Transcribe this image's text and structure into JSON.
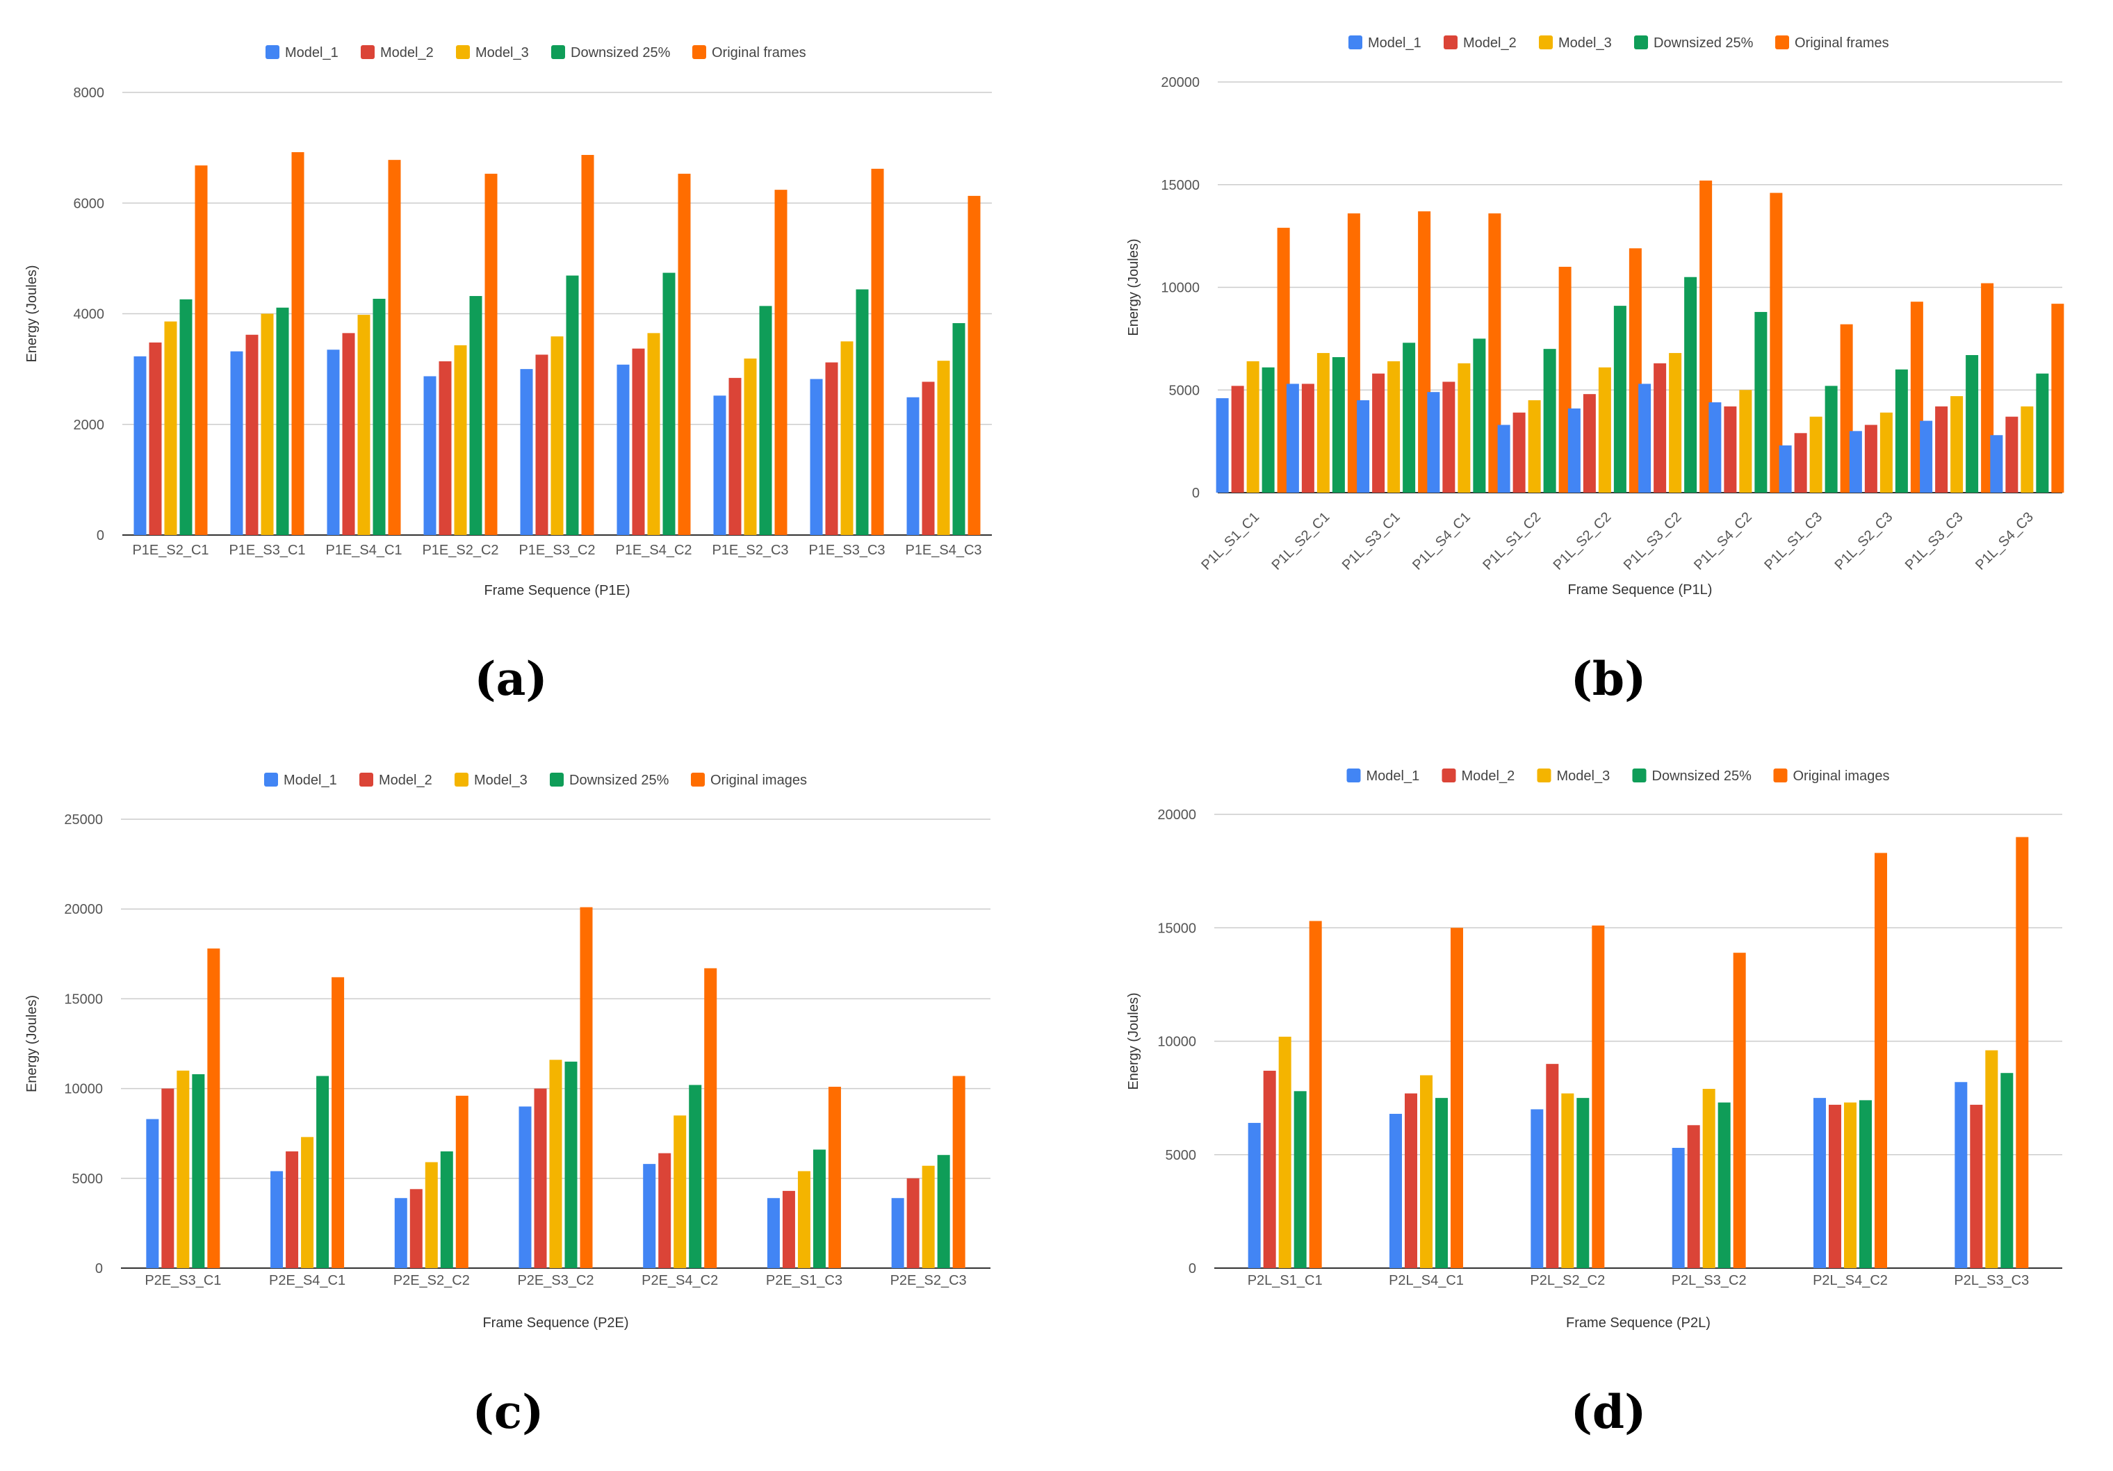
{
  "chart_data": [
    {
      "type": "bar",
      "caption": "(a)",
      "title": "",
      "xlabel": "Frame Sequence (P1E)",
      "ylabel": "Energy (Joules)",
      "ylim": [
        0,
        8000
      ],
      "yticks": [
        0,
        2000,
        4000,
        6000,
        8000
      ],
      "grid": true,
      "legend_position": "top",
      "x_label_rotation": 0,
      "categories": [
        "P1E_S2_C1",
        "P1E_S3_C1",
        "P1E_S4_C1",
        "P1E_S2_C2",
        "P1E_S3_C2",
        "P1E_S4_C2",
        "P1E_S2_C3",
        "P1E_S3_C3",
        "P1E_S4_C3"
      ],
      "series": [
        {
          "name": "Model_1",
          "color": "#4285f4",
          "values": [
            3230,
            3320,
            3350,
            2870,
            3000,
            3080,
            2520,
            2820,
            2490
          ]
        },
        {
          "name": "Model_2",
          "color": "#db4437",
          "values": [
            3480,
            3620,
            3650,
            3140,
            3260,
            3370,
            2840,
            3120,
            2770
          ]
        },
        {
          "name": "Model_3",
          "color": "#f4b400",
          "values": [
            3860,
            4000,
            3980,
            3430,
            3590,
            3650,
            3190,
            3500,
            3150
          ]
        },
        {
          "name": "Downsized 25%",
          "color": "#0f9d58",
          "values": [
            4260,
            4110,
            4270,
            4320,
            4690,
            4740,
            4140,
            4440,
            3830
          ]
        },
        {
          "name": "Original frames",
          "color": "#ff6d00",
          "values": [
            6680,
            6920,
            6780,
            6530,
            6870,
            6530,
            6240,
            6620,
            6130
          ]
        }
      ]
    },
    {
      "type": "bar",
      "caption": "(b)",
      "title": "",
      "xlabel": "Frame Sequence (P1L)",
      "ylabel": "Energy (Joules)",
      "ylim": [
        0,
        20000
      ],
      "yticks": [
        0,
        5000,
        10000,
        15000,
        20000
      ],
      "grid": true,
      "legend_position": "top",
      "x_label_rotation": -45,
      "categories": [
        "P1L_S1_C1",
        "P1L_S2_C1",
        "P1L_S3_C1",
        "P1L_S4_C1",
        "P1L_S1_C2",
        "P1L_S2_C2",
        "P1L_S3_C2",
        "P1L_S4_C2",
        "P1L_S1_C3",
        "P1L_S2_C3",
        "P1L_S3_C3",
        "P1L_S4_C3"
      ],
      "series": [
        {
          "name": "Model_1",
          "color": "#4285f4",
          "values": [
            4600,
            5300,
            4500,
            4900,
            3300,
            4100,
            5300,
            4400,
            2300,
            3000,
            3500,
            2800
          ]
        },
        {
          "name": "Model_2",
          "color": "#db4437",
          "values": [
            5200,
            5300,
            5800,
            5400,
            3900,
            4800,
            6300,
            4200,
            2900,
            3300,
            4200,
            3700
          ]
        },
        {
          "name": "Model_3",
          "color": "#f4b400",
          "values": [
            6400,
            6800,
            6400,
            6300,
            4500,
            6100,
            6800,
            5000,
            3700,
            3900,
            4700,
            4200
          ]
        },
        {
          "name": "Downsized 25%",
          "color": "#0f9d58",
          "values": [
            6100,
            6600,
            7300,
            7500,
            7000,
            9100,
            10500,
            8800,
            5200,
            6000,
            6700,
            5800
          ]
        },
        {
          "name": "Original frames",
          "color": "#ff6d00",
          "values": [
            12900,
            13600,
            13700,
            13600,
            11000,
            11900,
            15200,
            14600,
            8200,
            9300,
            10200,
            9200
          ]
        }
      ]
    },
    {
      "type": "bar",
      "caption": "(c)",
      "title": "",
      "xlabel": "Frame Sequence (P2E)",
      "ylabel": "Energy (Joules)",
      "ylim": [
        0,
        25000
      ],
      "yticks": [
        0,
        5000,
        10000,
        15000,
        20000,
        25000
      ],
      "grid": true,
      "legend_position": "top",
      "x_label_rotation": 0,
      "categories": [
        "P2E_S3_C1",
        "P2E_S4_C1",
        "P2E_S2_C2",
        "P2E_S3_C2",
        "P2E_S4_C2",
        "P2E_S1_C3",
        "P2E_S2_C3"
      ],
      "series": [
        {
          "name": "Model_1",
          "color": "#4285f4",
          "values": [
            8300,
            5400,
            3900,
            9000,
            5800,
            3900,
            3900
          ]
        },
        {
          "name": "Model_2",
          "color": "#db4437",
          "values": [
            10000,
            6500,
            4400,
            10000,
            6400,
            4300,
            5000
          ]
        },
        {
          "name": "Model_3",
          "color": "#f4b400",
          "values": [
            11000,
            7300,
            5900,
            11600,
            8500,
            5400,
            5700
          ]
        },
        {
          "name": "Downsized 25%",
          "color": "#0f9d58",
          "values": [
            10800,
            10700,
            6500,
            11500,
            10200,
            6600,
            6300
          ]
        },
        {
          "name": "Original images",
          "color": "#ff6d00",
          "values": [
            17800,
            16200,
            9600,
            20100,
            16700,
            10100,
            10700
          ]
        }
      ]
    },
    {
      "type": "bar",
      "caption": "(d)",
      "title": "",
      "xlabel": "Frame Sequence (P2L)",
      "ylabel": "Energy (Joules)",
      "ylim": [
        0,
        20000
      ],
      "yticks": [
        0,
        5000,
        10000,
        15000,
        20000
      ],
      "grid": true,
      "legend_position": "top",
      "x_label_rotation": 0,
      "categories": [
        "P2L_S1_C1",
        "P2L_S4_C1",
        "P2L_S2_C2",
        "P2L_S3_C2",
        "P2L_S4_C2",
        "P2L_S3_C3"
      ],
      "series": [
        {
          "name": "Model_1",
          "color": "#4285f4",
          "values": [
            6400,
            6800,
            7000,
            5300,
            7500,
            8200
          ]
        },
        {
          "name": "Model_2",
          "color": "#db4437",
          "values": [
            8700,
            7700,
            9000,
            6300,
            7200,
            7200
          ]
        },
        {
          "name": "Model_3",
          "color": "#f4b400",
          "values": [
            10200,
            8500,
            7700,
            7900,
            7300,
            9600
          ]
        },
        {
          "name": "Downsized 25%",
          "color": "#0f9d58",
          "values": [
            7800,
            7500,
            7500,
            7300,
            7400,
            8600
          ]
        },
        {
          "name": "Original images",
          "color": "#ff6d00",
          "values": [
            15300,
            15000,
            15100,
            13900,
            18300,
            19000
          ]
        }
      ]
    }
  ]
}
